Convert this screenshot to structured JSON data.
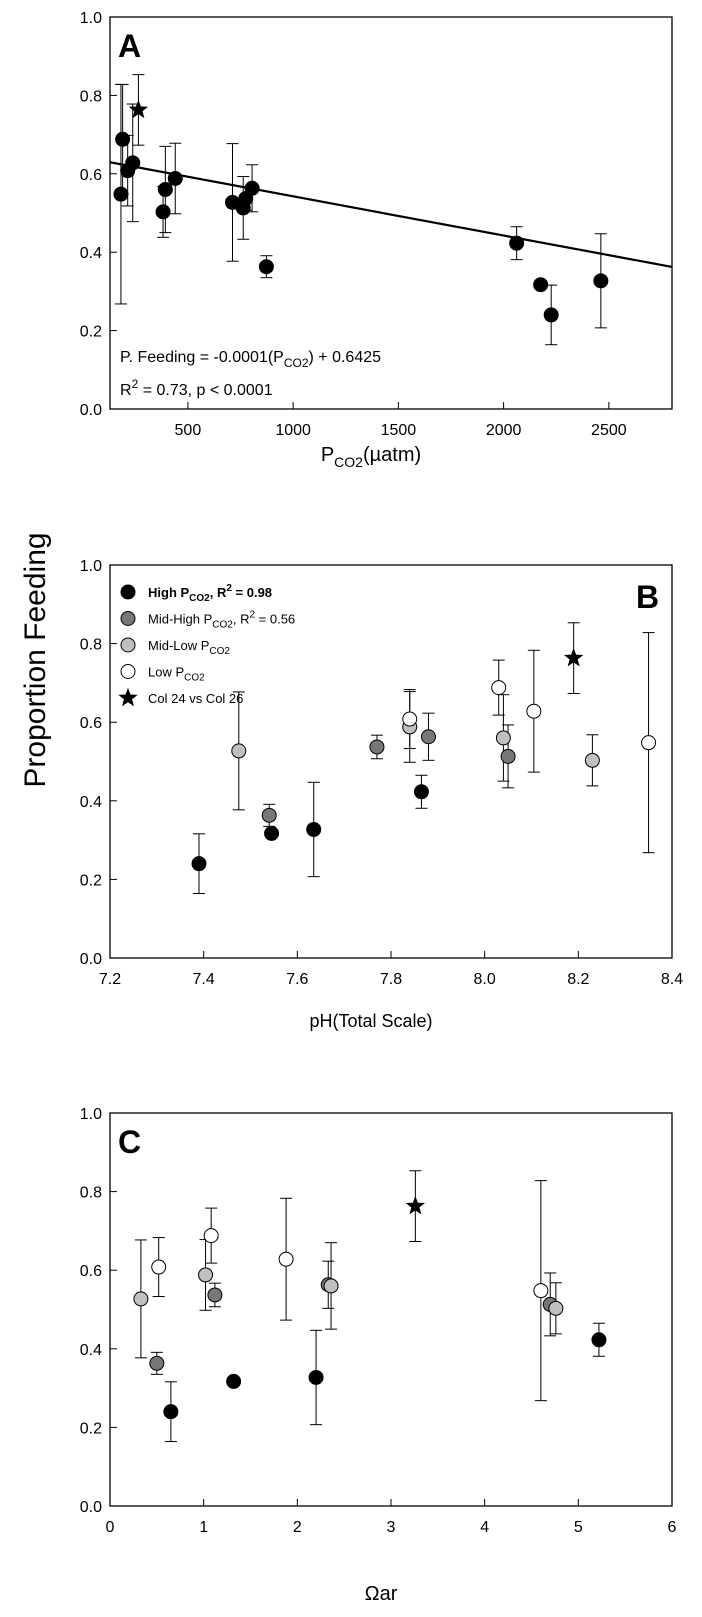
{
  "figure": {
    "shared_ylabel": "Proportion Feeding"
  },
  "chart_data": [
    {
      "id": "A",
      "type": "scatter",
      "panel_label": "A",
      "xlabel_main": "P",
      "xlabel_sub": "CO2",
      "xlabel_rest": "(µatm)",
      "xlim": [
        130,
        2800
      ],
      "ylim": [
        0.0,
        1.0
      ],
      "x_ticks": [
        500,
        1000,
        1500,
        2000,
        2500
      ],
      "x_tick_labels": [
        "500",
        "1000",
        "1500",
        "2000",
        "2500"
      ],
      "y_ticks": [
        0.0,
        0.2,
        0.4,
        0.6,
        0.8,
        1.0
      ],
      "y_tick_labels": [
        "0.0",
        "0.2",
        "0.4",
        "0.6",
        "0.8",
        "1.0"
      ],
      "regression": {
        "slope": -0.0001,
        "intercept": 0.6425
      },
      "equation_lines": {
        "line1_prefix": "P. Feeding = -0.0001(P",
        "line1_sub": "CO2",
        "line1_suffix": ") + 0.6425",
        "line2_prefix": "R",
        "line2_sup": "2",
        "line2_suffix": " = 0.73, p < 0.0001"
      },
      "points": [
        {
          "x": 182,
          "y": 0.548,
          "err": 0.28,
          "marker": "circle",
          "fill": "#000000"
        },
        {
          "x": 190,
          "y": 0.688,
          "err": 0.14,
          "marker": "circle",
          "fill": "#000000"
        },
        {
          "x": 214,
          "y": 0.608,
          "err": 0.09,
          "marker": "circle",
          "fill": "#000000"
        },
        {
          "x": 238,
          "y": 0.628,
          "err": 0.15,
          "marker": "circle",
          "fill": "#000000"
        },
        {
          "x": 265,
          "y": 0.763,
          "err": 0.09,
          "marker": "star",
          "fill": "#000000"
        },
        {
          "x": 382,
          "y": 0.503,
          "err": 0.065,
          "marker": "circle",
          "fill": "#000000"
        },
        {
          "x": 393,
          "y": 0.56,
          "err": 0.11,
          "marker": "circle",
          "fill": "#000000"
        },
        {
          "x": 440,
          "y": 0.588,
          "err": 0.09,
          "marker": "circle",
          "fill": "#000000"
        },
        {
          "x": 712,
          "y": 0.527,
          "err": 0.15,
          "marker": "circle",
          "fill": "#000000"
        },
        {
          "x": 763,
          "y": 0.513,
          "err": 0.08,
          "marker": "circle",
          "fill": "#000000"
        },
        {
          "x": 775,
          "y": 0.537,
          "err": 0.03,
          "marker": "circle",
          "fill": "#000000"
        },
        {
          "x": 805,
          "y": 0.563,
          "err": 0.06,
          "marker": "circle",
          "fill": "#000000"
        },
        {
          "x": 873,
          "y": 0.363,
          "err": 0.028,
          "marker": "circle",
          "fill": "#000000"
        },
        {
          "x": 2062,
          "y": 0.423,
          "err": 0.042,
          "marker": "circle",
          "fill": "#000000"
        },
        {
          "x": 2176,
          "y": 0.317,
          "err": 0.0,
          "marker": "circle",
          "fill": "#000000"
        },
        {
          "x": 2226,
          "y": 0.24,
          "err": 0.076,
          "marker": "circle",
          "fill": "#000000"
        },
        {
          "x": 2462,
          "y": 0.327,
          "err": 0.12,
          "marker": "circle",
          "fill": "#000000"
        }
      ]
    },
    {
      "id": "B",
      "type": "scatter",
      "panel_label": "B",
      "xlabel": "pH(Total Scale)",
      "xlim": [
        7.2,
        8.4
      ],
      "ylim": [
        0.0,
        1.0
      ],
      "x_ticks": [
        7.2,
        7.4,
        7.6,
        7.8,
        8.0,
        8.2,
        8.4
      ],
      "x_tick_labels": [
        "7.2",
        "7.4",
        "7.6",
        "7.8",
        "8.0",
        "8.2",
        "8.4"
      ],
      "y_ticks": [
        0.0,
        0.2,
        0.4,
        0.6,
        0.8,
        1.0
      ],
      "y_tick_labels": [
        "0.0",
        "0.2",
        "0.4",
        "0.6",
        "0.8",
        "1.0"
      ],
      "legend": [
        {
          "main": "High P",
          "sub": "CO2",
          "rest": ", R",
          "sup": "2",
          "tail": " = 0.98",
          "bold": true,
          "marker": "circle",
          "fill": "#000000"
        },
        {
          "main": "Mid-High P",
          "sub": "CO2",
          "rest": ", R",
          "sup": "2",
          "tail": " = 0.56",
          "bold": false,
          "marker": "circle",
          "fill": "#777777"
        },
        {
          "main": "Mid-Low P",
          "sub": "CO2",
          "rest": "",
          "sup": "",
          "tail": "",
          "bold": false,
          "marker": "circle",
          "fill": "#bfbfbf"
        },
        {
          "main": "Low P",
          "sub": "CO2",
          "rest": "",
          "sup": "",
          "tail": "",
          "bold": false,
          "marker": "circle",
          "fill": "#ffffff"
        },
        {
          "main": "Col 24 vs Col 26",
          "sub": "",
          "rest": "",
          "sup": "",
          "tail": "",
          "bold": false,
          "marker": "star",
          "fill": "#000000"
        }
      ],
      "series": [
        {
          "name": "High PCO2",
          "fill": "#000000",
          "marker": "circle",
          "points": [
            {
              "x": 7.39,
              "y": 0.24,
              "err": 0.076
            },
            {
              "x": 7.545,
              "y": 0.317,
              "err": 0.0
            },
            {
              "x": 7.635,
              "y": 0.327,
              "err": 0.12
            },
            {
              "x": 7.865,
              "y": 0.423,
              "err": 0.042
            }
          ]
        },
        {
          "name": "Mid-High PCO2",
          "fill": "#777777",
          "marker": "circle",
          "points": [
            {
              "x": 7.54,
              "y": 0.363,
              "err": 0.028
            },
            {
              "x": 7.77,
              "y": 0.537,
              "err": 0.03
            },
            {
              "x": 7.88,
              "y": 0.563,
              "err": 0.06
            },
            {
              "x": 8.05,
              "y": 0.513,
              "err": 0.08
            }
          ]
        },
        {
          "name": "Mid-Low PCO2",
          "fill": "#bfbfbf",
          "marker": "circle",
          "points": [
            {
              "x": 7.475,
              "y": 0.527,
              "err": 0.15
            },
            {
              "x": 7.84,
              "y": 0.588,
              "err": 0.09
            },
            {
              "x": 8.04,
              "y": 0.56,
              "err": 0.11
            },
            {
              "x": 8.23,
              "y": 0.503,
              "err": 0.065
            }
          ]
        },
        {
          "name": "Low PCO2",
          "fill": "#ffffff",
          "marker": "circle",
          "points": [
            {
              "x": 7.84,
              "y": 0.608,
              "err": 0.075
            },
            {
              "x": 8.03,
              "y": 0.688,
              "err": 0.07
            },
            {
              "x": 8.105,
              "y": 0.628,
              "err": 0.155
            },
            {
              "x": 8.35,
              "y": 0.548,
              "err": 0.28
            }
          ]
        },
        {
          "name": "Col 24 vs Col 26",
          "fill": "#000000",
          "marker": "star",
          "points": [
            {
              "x": 8.19,
              "y": 0.763,
              "err": 0.09
            }
          ]
        }
      ]
    },
    {
      "id": "C",
      "type": "scatter",
      "panel_label": "C",
      "xlabel": "Ωar",
      "xlim": [
        0,
        6
      ],
      "ylim": [
        0.0,
        1.0
      ],
      "x_ticks": [
        0,
        1,
        2,
        3,
        4,
        5,
        6
      ],
      "x_tick_labels": [
        "0",
        "1",
        "2",
        "3",
        "4",
        "5",
        "6"
      ],
      "y_ticks": [
        0.0,
        0.2,
        0.4,
        0.6,
        0.8,
        1.0
      ],
      "y_tick_labels": [
        "0.0",
        "0.2",
        "0.4",
        "0.6",
        "0.8",
        "1.0"
      ],
      "series": [
        {
          "name": "High PCO2",
          "fill": "#000000",
          "marker": "circle",
          "points": [
            {
              "x": 0.65,
              "y": 0.24,
              "err": 0.076
            },
            {
              "x": 1.32,
              "y": 0.317,
              "err": 0.0
            },
            {
              "x": 2.2,
              "y": 0.327,
              "err": 0.12
            },
            {
              "x": 5.22,
              "y": 0.423,
              "err": 0.042
            }
          ]
        },
        {
          "name": "Mid-High PCO2",
          "fill": "#777777",
          "marker": "circle",
          "points": [
            {
              "x": 0.5,
              "y": 0.363,
              "err": 0.028
            },
            {
              "x": 1.12,
              "y": 0.537,
              "err": 0.03
            },
            {
              "x": 2.33,
              "y": 0.563,
              "err": 0.06
            },
            {
              "x": 4.7,
              "y": 0.513,
              "err": 0.08
            }
          ]
        },
        {
          "name": "Mid-Low PCO2",
          "fill": "#bfbfbf",
          "marker": "circle",
          "points": [
            {
              "x": 0.33,
              "y": 0.527,
              "err": 0.15
            },
            {
              "x": 1.02,
              "y": 0.588,
              "err": 0.09
            },
            {
              "x": 2.36,
              "y": 0.56,
              "err": 0.11
            },
            {
              "x": 4.76,
              "y": 0.503,
              "err": 0.065
            }
          ]
        },
        {
          "name": "Low PCO2",
          "fill": "#ffffff",
          "marker": "circle",
          "points": [
            {
              "x": 0.52,
              "y": 0.608,
              "err": 0.075
            },
            {
              "x": 1.08,
              "y": 0.688,
              "err": 0.07
            },
            {
              "x": 1.88,
              "y": 0.628,
              "err": 0.155
            },
            {
              "x": 4.6,
              "y": 0.548,
              "err": 0.28
            }
          ]
        },
        {
          "name": "Col 24 vs Col 26",
          "fill": "#000000",
          "marker": "star",
          "points": [
            {
              "x": 3.26,
              "y": 0.763,
              "err": 0.09
            }
          ]
        }
      ]
    }
  ]
}
